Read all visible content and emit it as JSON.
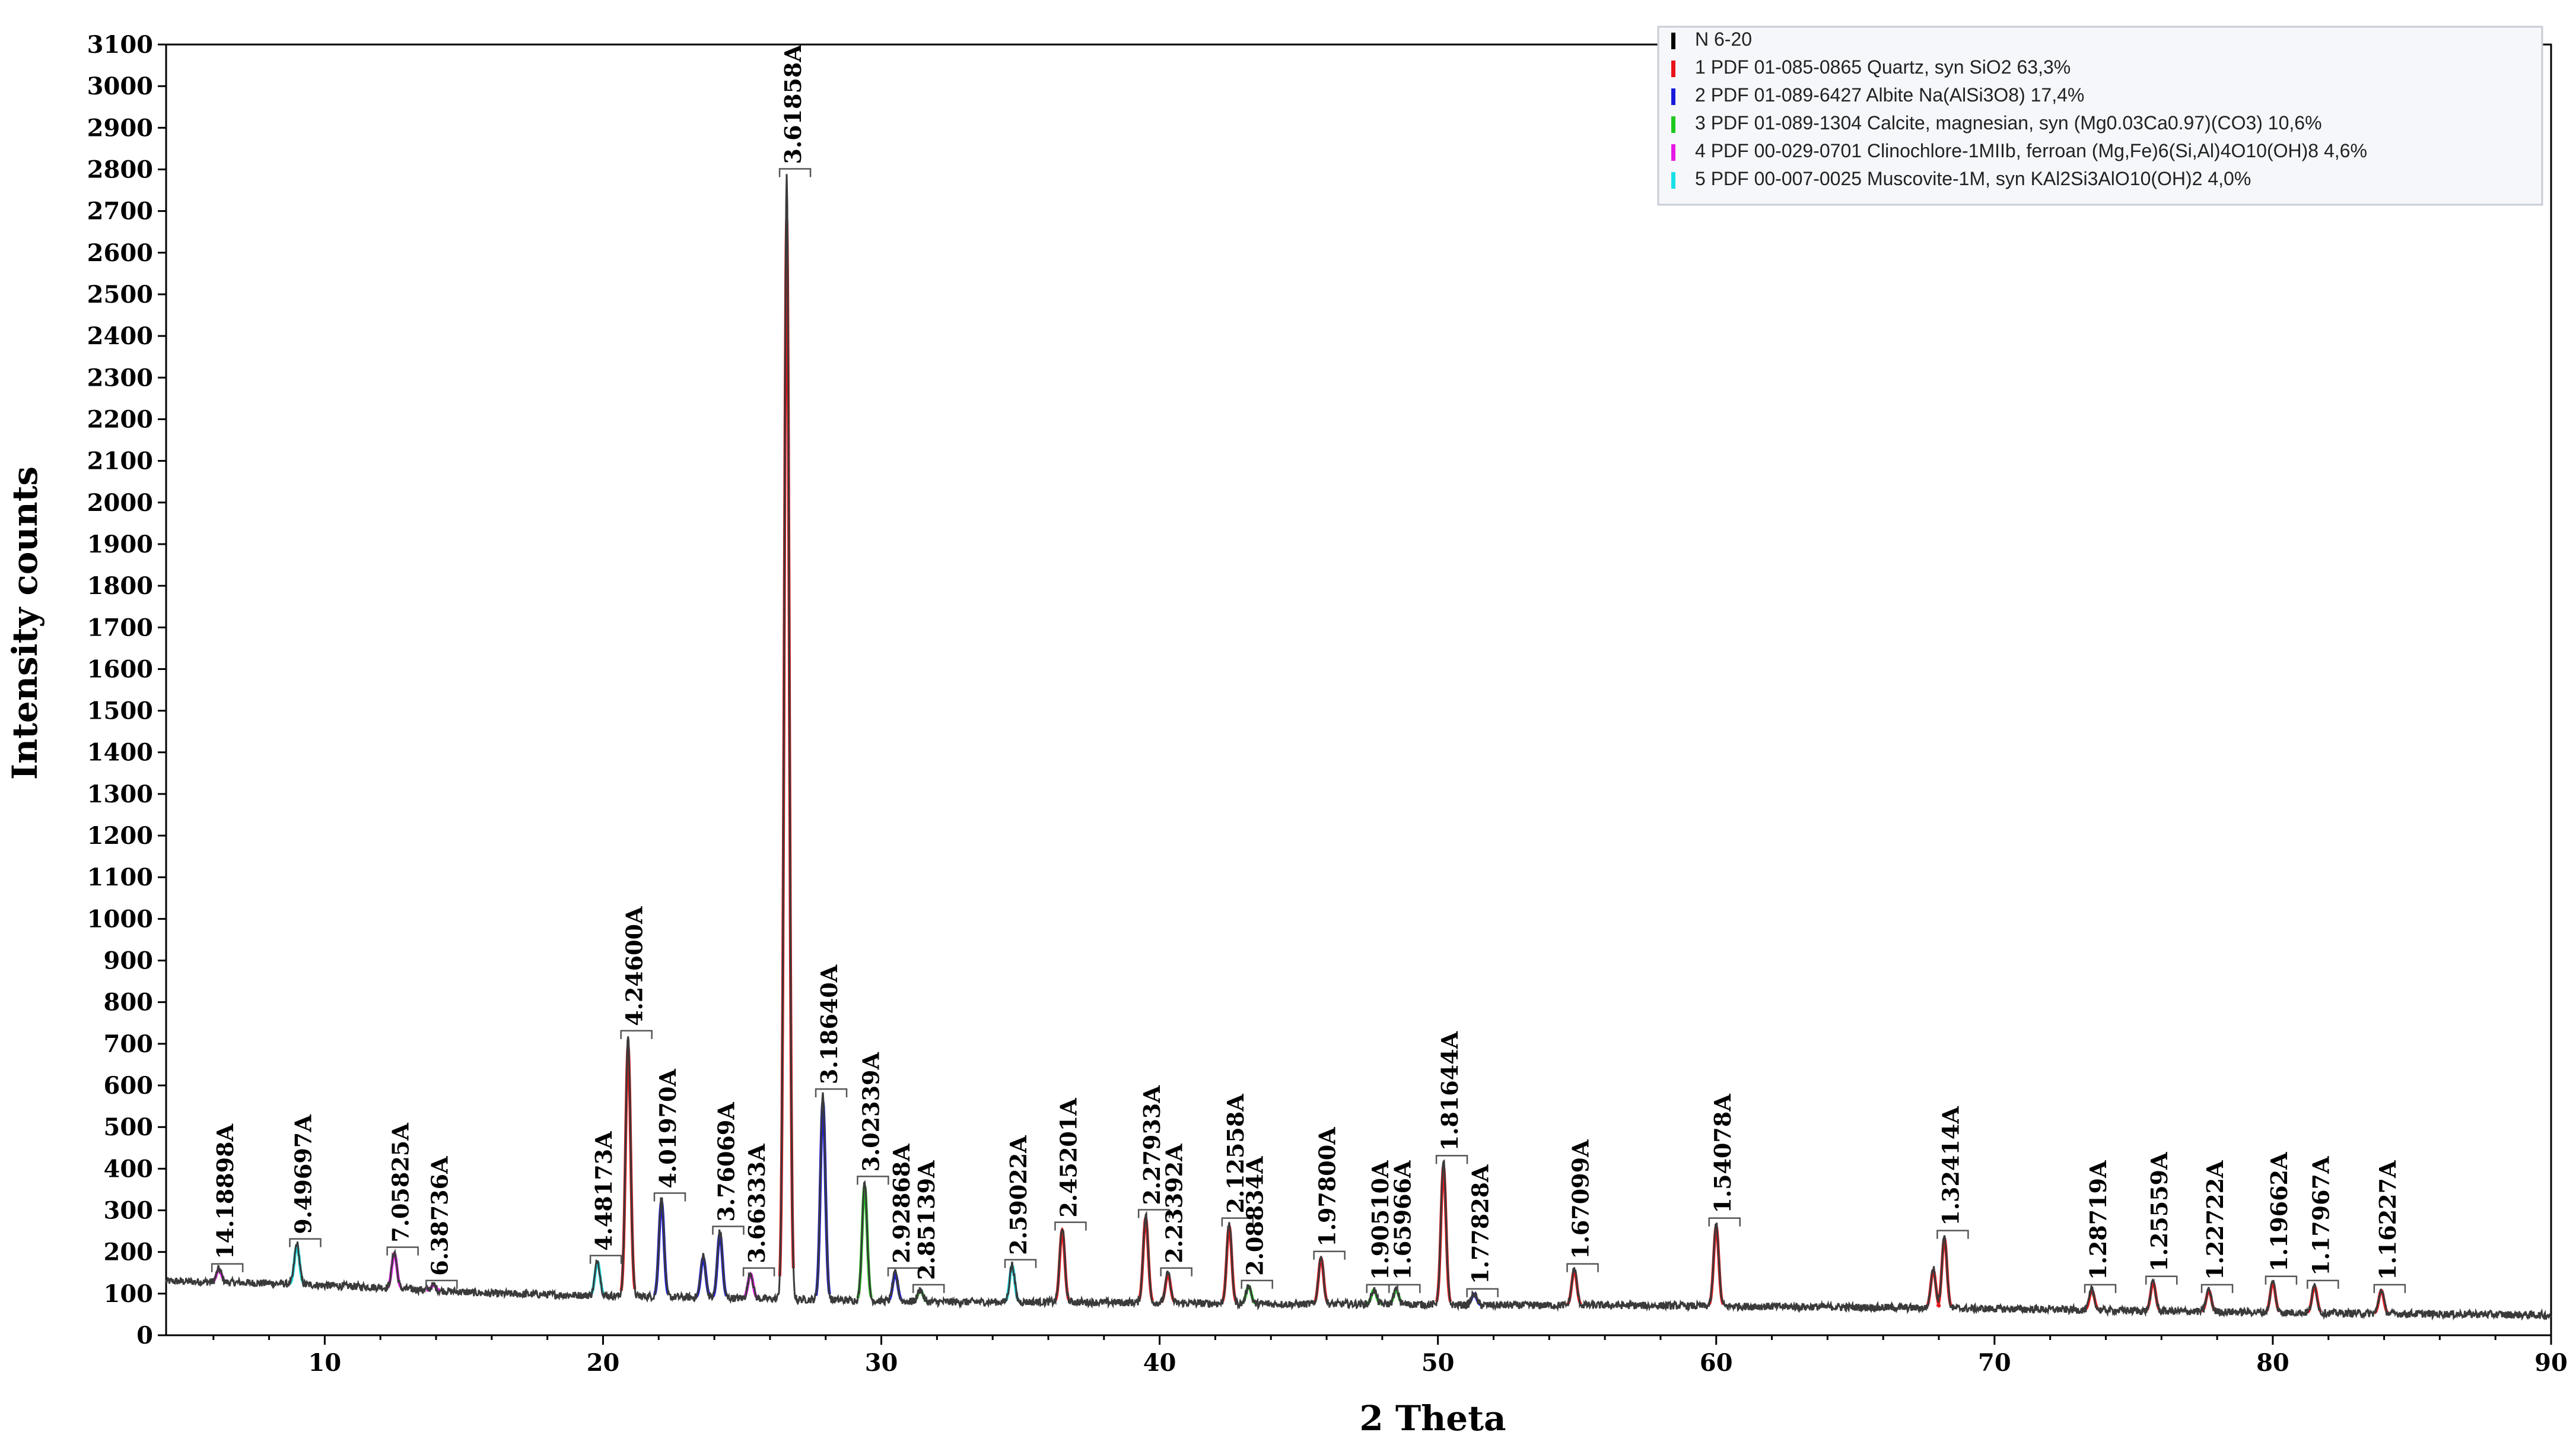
{
  "chart_data": {
    "type": "line",
    "title": "",
    "xlabel": "2 Theta",
    "ylabel": "Intensity counts",
    "xlim": [
      4.3,
      90
    ],
    "ylim": [
      0,
      3100
    ],
    "xticks": [
      10,
      20,
      30,
      40,
      50,
      60,
      70,
      80,
      90
    ],
    "yticks": [
      0,
      100,
      200,
      300,
      400,
      500,
      600,
      700,
      800,
      900,
      1000,
      1100,
      1200,
      1300,
      1400,
      1500,
      1600,
      1700,
      1800,
      1900,
      2000,
      2100,
      2200,
      2300,
      2400,
      2500,
      2600,
      2700,
      2800,
      2900,
      3000,
      3100
    ],
    "legend": {
      "position": "top-right",
      "entries": [
        {
          "label": "N 6-20",
          "color": "#000000"
        },
        {
          "label": "1 PDF 01-085-0865 Quartz, syn SiO2 63,3%",
          "color": "#e8141a"
        },
        {
          "label": "2 PDF 01-089-6427 Albite Na(AlSi3O8) 17,4%",
          "color": "#1a1adc"
        },
        {
          "label": "3 PDF 01-089-1304 Calcite, magnesian, syn (Mg0.03Ca0.97)(CO3) 10,6%",
          "color": "#1ec81e"
        },
        {
          "label": "4 PDF 00-029-0701 Clinochlore-1MIIb, ferroan (Mg,Fe)6(Si,Al)4O10(OH)8 4,6%",
          "color": "#e619e6"
        },
        {
          "label": "5 PDF 00-007-0025 Muscovite-1M, syn KAl2Si3AlO10(OH)2 4,0%",
          "color": "#19e0e6"
        }
      ]
    },
    "baseline": {
      "name": "N 6-20",
      "x": [
        4.3,
        8,
        12,
        16,
        20,
        24,
        28,
        32,
        36,
        40,
        44,
        48,
        52,
        56,
        60,
        64,
        68,
        72,
        76,
        80,
        84,
        88,
        90
      ],
      "y": [
        130,
        125,
        115,
        100,
        95,
        90,
        85,
        80,
        80,
        78,
        75,
        75,
        72,
        72,
        70,
        68,
        65,
        62,
        58,
        55,
        52,
        50,
        48
      ]
    },
    "peaks": [
      {
        "x": 6.2,
        "y": 160,
        "phase": 4,
        "label": "14.18898A"
      },
      {
        "x": 9.0,
        "y": 220,
        "phase": 5,
        "label": "9.49697A"
      },
      {
        "x": 12.5,
        "y": 200,
        "phase": 4,
        "label": "7.05825A"
      },
      {
        "x": 13.9,
        "y": 120,
        "phase": 4,
        "label": "6.38736A"
      },
      {
        "x": 19.8,
        "y": 180,
        "phase": 5,
        "label": "4.48173A"
      },
      {
        "x": 20.9,
        "y": 720,
        "phase": 1,
        "label": "4.24600A"
      },
      {
        "x": 22.1,
        "y": 330,
        "phase": 2,
        "label": "4.01970A"
      },
      {
        "x": 23.6,
        "y": 190,
        "phase": 2,
        "label": ""
      },
      {
        "x": 24.2,
        "y": 250,
        "phase": 2,
        "label": "3.76069A"
      },
      {
        "x": 25.3,
        "y": 150,
        "phase": 4,
        "label": "3.66333A"
      },
      {
        "x": 26.6,
        "y": 2790,
        "phase": 1,
        "label": "3.61858A"
      },
      {
        "x": 27.9,
        "y": 580,
        "phase": 2,
        "label": "3.18640A"
      },
      {
        "x": 29.4,
        "y": 370,
        "phase": 3,
        "label": "3.02339A"
      },
      {
        "x": 30.5,
        "y": 150,
        "phase": 2,
        "label": "2.92868A"
      },
      {
        "x": 31.4,
        "y": 110,
        "phase": 3,
        "label": "2.85139A"
      },
      {
        "x": 34.7,
        "y": 170,
        "phase": 5,
        "label": "2.59022A"
      },
      {
        "x": 36.5,
        "y": 260,
        "phase": 1,
        "label": "2.45201A"
      },
      {
        "x": 39.5,
        "y": 290,
        "phase": 1,
        "label": "2.27933A"
      },
      {
        "x": 40.3,
        "y": 150,
        "phase": 1,
        "label": "2.23392A"
      },
      {
        "x": 42.5,
        "y": 270,
        "phase": 1,
        "label": "2.12558A"
      },
      {
        "x": 43.2,
        "y": 120,
        "phase": 3,
        "label": "2.08834A"
      },
      {
        "x": 45.8,
        "y": 190,
        "phase": 1,
        "label": "1.97800A"
      },
      {
        "x": 47.7,
        "y": 110,
        "phase": 3,
        "label": "1.90510A"
      },
      {
        "x": 48.5,
        "y": 110,
        "phase": 3,
        "label": "1.65966A"
      },
      {
        "x": 50.2,
        "y": 420,
        "phase": 1,
        "label": "1.81644A"
      },
      {
        "x": 51.3,
        "y": 100,
        "phase": 2,
        "label": "1.77828A"
      },
      {
        "x": 54.9,
        "y": 160,
        "phase": 1,
        "label": "1.67099A"
      },
      {
        "x": 60.0,
        "y": 270,
        "phase": 1,
        "label": "1.54078A"
      },
      {
        "x": 67.8,
        "y": 160,
        "phase": 1,
        "label": ""
      },
      {
        "x": 68.2,
        "y": 240,
        "phase": 1,
        "label": "1.32414A"
      },
      {
        "x": 73.5,
        "y": 110,
        "phase": 1,
        "label": "1.28719A"
      },
      {
        "x": 75.7,
        "y": 130,
        "phase": 1,
        "label": "1.25559A"
      },
      {
        "x": 77.7,
        "y": 110,
        "phase": 1,
        "label": "1.22722A"
      },
      {
        "x": 80.0,
        "y": 130,
        "phase": 1,
        "label": "1.19662A"
      },
      {
        "x": 81.5,
        "y": 120,
        "phase": 1,
        "label": "1.17967A"
      },
      {
        "x": 83.9,
        "y": 110,
        "phase": 1,
        "label": "1.16227A"
      }
    ]
  }
}
